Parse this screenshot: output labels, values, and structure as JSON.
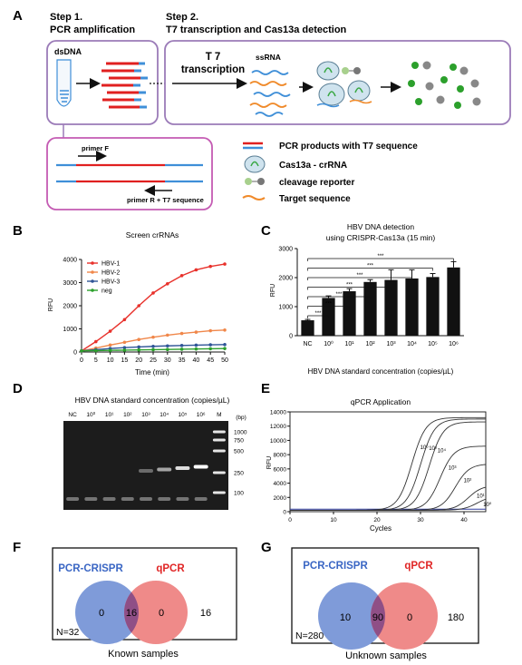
{
  "panels": {
    "a": "A",
    "b": "B",
    "c": "C",
    "d": "D",
    "e": "E",
    "f": "F",
    "g": "G"
  },
  "panel_a": {
    "step1_title": "Step 1.",
    "step1_sub": "PCR amplification",
    "step2_title": "Step 2.",
    "step2_sub": "T7 transcription and Cas13a detection",
    "dsdna": "dsDNA",
    "t7_line1": "T 7",
    "t7_line2": "transcription",
    "ssrna": "ssRNA",
    "primer_f": "primer F",
    "primer_r": "primer R + T7 sequence",
    "legend": {
      "pcr": "PCR products with T7 sequence",
      "cas": "Cas13a - crRNA",
      "reporter": "cleavage reporter",
      "target": "Target sequence"
    },
    "colors": {
      "red": "#e02020",
      "blue": "#3f8fd8",
      "orange": "#f08a2a",
      "box": "#9b7bb8",
      "green": "#3aa845"
    }
  },
  "chart_data": [
    {
      "id": "B",
      "type": "line",
      "title": "Screen crRNAs",
      "xlabel": "Time (min)",
      "ylabel": "RFU",
      "x": [
        0,
        5,
        10,
        15,
        20,
        25,
        30,
        35,
        40,
        45,
        50
      ],
      "xlim": [
        0,
        50
      ],
      "ylim": [
        0,
        4000
      ],
      "yticks": [
        0,
        1000,
        2000,
        3000,
        4000
      ],
      "legend_position": "top-left",
      "series": [
        {
          "name": "HBV-1",
          "color": "#e8312b",
          "values": [
            50,
            450,
            900,
            1400,
            2000,
            2550,
            2950,
            3300,
            3550,
            3700,
            3800
          ]
        },
        {
          "name": "HBV-2",
          "color": "#f0874a",
          "values": [
            50,
            170,
            300,
            420,
            540,
            640,
            730,
            800,
            860,
            920,
            950
          ]
        },
        {
          "name": "HBV-3",
          "color": "#2f5597",
          "values": [
            50,
            100,
            150,
            190,
            220,
            245,
            265,
            280,
            295,
            310,
            320
          ]
        },
        {
          "name": "neg",
          "color": "#2ca02c",
          "values": [
            50,
            60,
            70,
            80,
            90,
            100,
            110,
            120,
            130,
            140,
            150
          ]
        }
      ]
    },
    {
      "id": "C",
      "type": "bar",
      "title": "HBV DNA detection",
      "subtitle": "using CRISPR-Cas13a (15 min)",
      "ylabel": "RFU",
      "xlabel": "HBV DNA standard concentration (copies/µL)",
      "categories": [
        "NC",
        "10⁰",
        "10¹",
        "10²",
        "10³",
        "10⁴",
        "10⁵",
        "10⁶"
      ],
      "values": [
        530,
        1300,
        1530,
        1850,
        1920,
        1970,
        2020,
        2350
      ],
      "errors": [
        30,
        70,
        90,
        80,
        350,
        300,
        120,
        200
      ],
      "ylim": [
        0,
        3000
      ],
      "yticks": [
        0,
        1000,
        2000,
        3000
      ],
      "significance": "***"
    },
    {
      "id": "E",
      "type": "line",
      "title": "qPCR Application",
      "xlabel": "Cycles",
      "ylabel": "RFU",
      "xlim": [
        0,
        45
      ],
      "ylim": [
        0,
        14000
      ],
      "xticks": [
        0,
        10,
        20,
        30,
        40
      ],
      "yticks": [
        0,
        2000,
        4000,
        6000,
        8000,
        10000,
        12000,
        14000
      ],
      "series": [
        {
          "name": "10⁶",
          "midpoint": 28,
          "plateau": 13000
        },
        {
          "name": "10⁵",
          "midpoint": 30,
          "plateau": 12800
        },
        {
          "name": "10⁴",
          "midpoint": 32,
          "plateau": 12400
        },
        {
          "name": "10³",
          "midpoint": 34.5,
          "plateau": 9000
        },
        {
          "name": "10²",
          "midpoint": 38,
          "plateau": 6500
        },
        {
          "name": "10¹",
          "midpoint": 41,
          "plateau": 3500
        },
        {
          "name": "10⁰",
          "midpoint": 43,
          "plateau": 2000
        }
      ]
    }
  ],
  "panel_d": {
    "title": "HBV DNA standard concentration (copies/µL)",
    "lanes": [
      "NC",
      "10⁰",
      "10¹",
      "10²",
      "10³",
      "10⁴",
      "10⁵",
      "10⁶",
      "M"
    ],
    "bp_unit": "(bp)",
    "ladder": [
      "1000",
      "750",
      "500",
      "250",
      "100"
    ]
  },
  "panel_f": {
    "left_label": "PCR-CRISPR",
    "right_label": "qPCR",
    "left_only": "0",
    "both": "16",
    "right_only": "0",
    "outside": "16",
    "n": "N=32",
    "caption": "Known samples"
  },
  "panel_g": {
    "left_label": "PCR-CRISPR",
    "right_label": "qPCR",
    "left_only": "10",
    "both": "90",
    "right_only": "0",
    "outside": "180",
    "n": "N=280",
    "caption": "Unknown samples"
  }
}
